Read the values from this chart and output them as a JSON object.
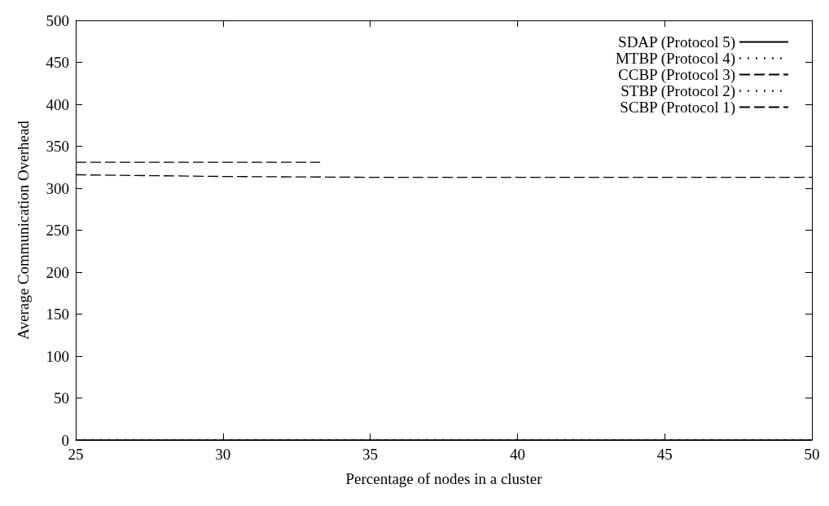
{
  "chart_data": {
    "type": "line",
    "xlabel": "Percentage of nodes in a cluster",
    "ylabel": "Average Communication Overhead",
    "xlim": [
      25,
      50
    ],
    "xticks": [
      25,
      30,
      35,
      40,
      45,
      50
    ],
    "ylim": [
      0,
      500
    ],
    "yticks": [
      0,
      50,
      100,
      150,
      200,
      250,
      300,
      350,
      400,
      450,
      500
    ],
    "grid": false,
    "legend": "top right",
    "marker": "none",
    "series": [
      {
        "name": "SDAP (Protocol 5)",
        "color": "#000000",
        "line_style": "solid",
        "x": [
          25,
          50
        ],
        "values": [
          0,
          0
        ]
      },
      {
        "name": "MTBP (Protocol 4)",
        "color": "#000000",
        "line_style": "dotted",
        "x": [
          25,
          50
        ],
        "values": [
          0,
          0
        ]
      },
      {
        "name": "CCBP (Protocol 3)",
        "color": "#000000",
        "line_style": "dashed",
        "x": [
          25,
          30,
          35,
          40,
          45,
          50
        ],
        "values": [
          316,
          314,
          313,
          313,
          313,
          313
        ]
      },
      {
        "name": "STBP (Protocol 2)",
        "color": "#000000",
        "line_style": "dotted",
        "x": [
          25,
          50
        ],
        "values": [
          0,
          0
        ]
      },
      {
        "name": "SCBP (Protocol 1)",
        "color": "#000000",
        "line_style": "dashed",
        "x": [
          25,
          33.3
        ],
        "values": [
          331,
          331
        ]
      }
    ]
  }
}
